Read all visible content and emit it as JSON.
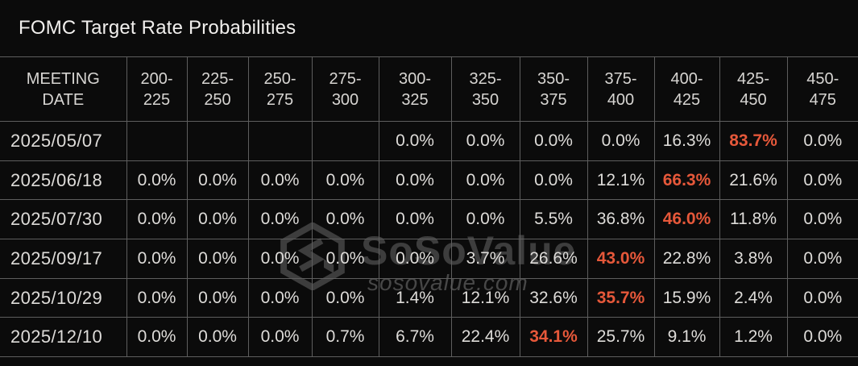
{
  "title": "FOMC Target Rate Probabilities",
  "watermark": {
    "brand": "SoSoValue",
    "site": "sosovalue.com"
  },
  "colors": {
    "background": "#0b0b0b",
    "grid": "#5e5e5e",
    "text": "#dedcd9",
    "highlight": "#e6583a",
    "watermark": "#3d3d3d"
  },
  "chart_data": {
    "type": "table",
    "title": "FOMC Target Rate Probabilities",
    "row_header": "MEETING\nDATE",
    "columns": [
      "200-\n225",
      "225-\n250",
      "250-\n275",
      "275-\n300",
      "300-\n325",
      "325-\n350",
      "350-\n375",
      "375-\n400",
      "400-\n425",
      "425-\n450",
      "450-\n475"
    ],
    "rows": [
      {
        "date": "2025/05/07",
        "values": [
          "",
          "",
          "",
          "",
          "0.0%",
          "0.0%",
          "0.0%",
          "0.0%",
          "16.3%",
          "83.7%",
          "0.0%"
        ],
        "highlight_col": 9
      },
      {
        "date": "2025/06/18",
        "values": [
          "0.0%",
          "0.0%",
          "0.0%",
          "0.0%",
          "0.0%",
          "0.0%",
          "0.0%",
          "12.1%",
          "66.3%",
          "21.6%",
          "0.0%"
        ],
        "highlight_col": 8
      },
      {
        "date": "2025/07/30",
        "values": [
          "0.0%",
          "0.0%",
          "0.0%",
          "0.0%",
          "0.0%",
          "0.0%",
          "5.5%",
          "36.8%",
          "46.0%",
          "11.8%",
          "0.0%"
        ],
        "highlight_col": 8
      },
      {
        "date": "2025/09/17",
        "values": [
          "0.0%",
          "0.0%",
          "0.0%",
          "0.0%",
          "0.0%",
          "3.7%",
          "26.6%",
          "43.0%",
          "22.8%",
          "3.8%",
          "0.0%"
        ],
        "highlight_col": 7
      },
      {
        "date": "2025/10/29",
        "values": [
          "0.0%",
          "0.0%",
          "0.0%",
          "0.0%",
          "1.4%",
          "12.1%",
          "32.6%",
          "35.7%",
          "15.9%",
          "2.4%",
          "0.0%"
        ],
        "highlight_col": 7
      },
      {
        "date": "2025/12/10",
        "values": [
          "0.0%",
          "0.0%",
          "0.0%",
          "0.7%",
          "6.7%",
          "22.4%",
          "34.1%",
          "25.7%",
          "9.1%",
          "1.2%",
          "0.0%"
        ],
        "highlight_col": 6
      }
    ]
  }
}
